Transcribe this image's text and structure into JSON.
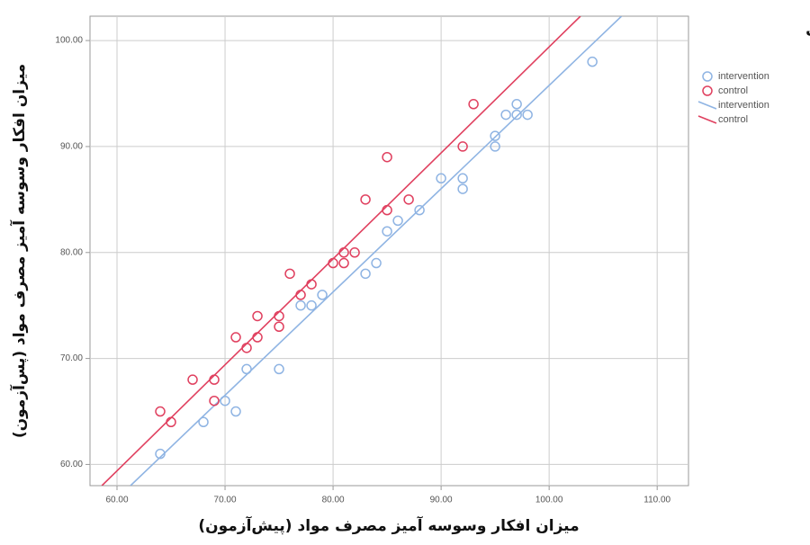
{
  "chart_data": {
    "type": "scatter",
    "legend_title": "گروه آزمایش و کنترل",
    "x_label": "میزان افکار وسوسه آمیز مصرف مواد (پیش‌آزمون)",
    "y_label": "میزان افکار وسوسه آمیز مصرف مواد (پس‌آزمون)",
    "xlim": [
      57.5,
      112.9
    ],
    "ylim": [
      58,
      102.3
    ],
    "xticks": [
      {
        "value": 60,
        "label": "60.00"
      },
      {
        "value": 70,
        "label": "70.00"
      },
      {
        "value": 80,
        "label": "80.00"
      },
      {
        "value": 90,
        "label": "90.00"
      },
      {
        "value": 100,
        "label": "100.00"
      },
      {
        "value": 110,
        "label": "110.00"
      }
    ],
    "yticks": [
      {
        "value": 60,
        "label": "60.00"
      },
      {
        "value": 70,
        "label": "70.00"
      },
      {
        "value": 80,
        "label": "80.00"
      },
      {
        "value": 90,
        "label": "90.00"
      },
      {
        "value": 100,
        "label": "100.00"
      }
    ],
    "grid": true,
    "series": [
      {
        "name": "intervention",
        "color": "#8fb4e3",
        "x": [
          64,
          68,
          70,
          71,
          72,
          75,
          77,
          78,
          79,
          83,
          84,
          85,
          86,
          88,
          90,
          92,
          92,
          95,
          95,
          96,
          97,
          97,
          98,
          104
        ],
        "y": [
          61,
          64,
          66,
          65,
          69,
          69,
          75,
          75,
          76,
          78,
          79,
          82,
          83,
          84,
          87,
          87,
          86,
          90,
          91,
          93,
          94,
          93,
          93,
          98
        ]
      },
      {
        "name": "control",
        "color": "#e0405f",
        "x": [
          64,
          65,
          67,
          69,
          69,
          71,
          72,
          73,
          73,
          75,
          75,
          76,
          77,
          78,
          80,
          81,
          81,
          82,
          83,
          85,
          85,
          87,
          92,
          93
        ],
        "y": [
          65,
          64,
          68,
          68,
          66,
          72,
          71,
          74,
          72,
          74,
          73,
          78,
          76,
          77,
          79,
          80,
          79,
          80,
          85,
          84,
          89,
          85,
          90,
          94
        ]
      }
    ],
    "fit_lines": [
      {
        "name": "intervention",
        "color": "#8fb4e3",
        "x": [
          61.25,
          106.7
        ],
        "y": [
          58,
          102.3
        ]
      },
      {
        "name": "control",
        "color": "#e0405f",
        "x": [
          58.6,
          102.9
        ],
        "y": [
          58,
          102.3
        ]
      }
    ]
  }
}
